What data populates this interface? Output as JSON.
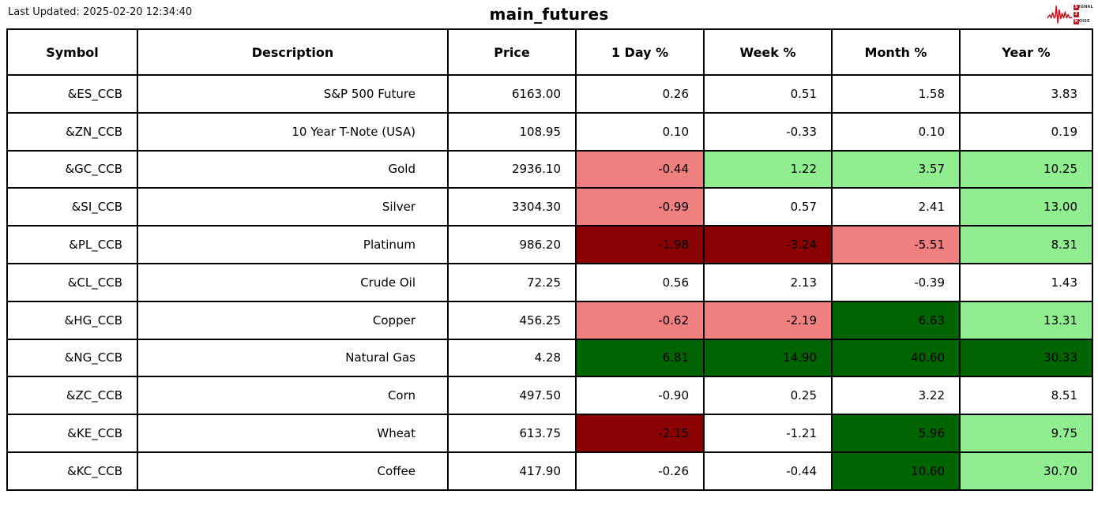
{
  "header": {
    "last_updated": "Last Updated: 2025-02-20 12:34:40",
    "title": "main_futures",
    "logo": {
      "line1_boxed": "S",
      "line1_rest": "IGNAL",
      "line2_boxed": "2",
      "line2_rest": "",
      "line3_boxed": "N",
      "line3_rest": "OISE",
      "accent_color": "#c41220"
    }
  },
  "table": {
    "columns": [
      "Symbol",
      "Description",
      "Price",
      "1 Day %",
      "Week %",
      "Month %",
      "Year %"
    ],
    "color_map": {
      "white": "#FFFFFF",
      "light_red": "#F08080",
      "light_green": "#90EE90",
      "dark_red": "#8B0000",
      "dark_green": "#006400"
    },
    "rows": [
      {
        "symbol": "&ES_CCB",
        "description": "S&P 500 Future",
        "price": "6163.00",
        "values": [
          "0.26",
          "0.51",
          "1.58",
          "3.83"
        ],
        "colors": [
          "white",
          "white",
          "white",
          "white"
        ]
      },
      {
        "symbol": "&ZN_CCB",
        "description": "10 Year T-Note (USA)",
        "price": "108.95",
        "values": [
          "0.10",
          "-0.33",
          "0.10",
          "0.19"
        ],
        "colors": [
          "white",
          "white",
          "white",
          "white"
        ]
      },
      {
        "symbol": "&GC_CCB",
        "description": "Gold",
        "price": "2936.10",
        "values": [
          "-0.44",
          "1.22",
          "3.57",
          "10.25"
        ],
        "colors": [
          "light_red",
          "light_green",
          "light_green",
          "light_green"
        ]
      },
      {
        "symbol": "&SI_CCB",
        "description": "Silver",
        "price": "3304.30",
        "values": [
          "-0.99",
          "0.57",
          "2.41",
          "13.00"
        ],
        "colors": [
          "light_red",
          "white",
          "white",
          "light_green"
        ]
      },
      {
        "symbol": "&PL_CCB",
        "description": "Platinum",
        "price": "986.20",
        "values": [
          "-1.98",
          "-3.24",
          "-5.51",
          "8.31"
        ],
        "colors": [
          "dark_red",
          "dark_red",
          "light_red",
          "light_green"
        ]
      },
      {
        "symbol": "&CL_CCB",
        "description": "Crude Oil",
        "price": "72.25",
        "values": [
          "0.56",
          "2.13",
          "-0.39",
          "1.43"
        ],
        "colors": [
          "white",
          "white",
          "white",
          "white"
        ]
      },
      {
        "symbol": "&HG_CCB",
        "description": "Copper",
        "price": "456.25",
        "values": [
          "-0.62",
          "-2.19",
          "6.63",
          "13.31"
        ],
        "colors": [
          "light_red",
          "light_red",
          "dark_green",
          "light_green"
        ]
      },
      {
        "symbol": "&NG_CCB",
        "description": "Natural Gas",
        "price": "4.28",
        "values": [
          "6.81",
          "14.90",
          "40.60",
          "30.33"
        ],
        "colors": [
          "dark_green",
          "dark_green",
          "dark_green",
          "dark_green"
        ]
      },
      {
        "symbol": "&ZC_CCB",
        "description": "Corn",
        "price": "497.50",
        "values": [
          "-0.90",
          "0.25",
          "3.22",
          "8.51"
        ],
        "colors": [
          "white",
          "white",
          "white",
          "white"
        ]
      },
      {
        "symbol": "&KE_CCB",
        "description": "Wheat",
        "price": "613.75",
        "values": [
          "-2.15",
          "-1.21",
          "5.96",
          "9.75"
        ],
        "colors": [
          "dark_red",
          "white",
          "dark_green",
          "light_green"
        ]
      },
      {
        "symbol": "&KC_CCB",
        "description": "Coffee",
        "price": "417.90",
        "values": [
          "-0.26",
          "-0.44",
          "10.60",
          "30.70"
        ],
        "colors": [
          "white",
          "white",
          "dark_green",
          "light_green"
        ]
      }
    ]
  },
  "chart_data": {
    "type": "table",
    "title": "main_futures",
    "columns": [
      "Symbol",
      "Description",
      "Price",
      "1 Day %",
      "Week %",
      "Month %",
      "Year %"
    ],
    "rows": [
      [
        "&ES_CCB",
        "S&P 500 Future",
        6163.0,
        0.26,
        0.51,
        1.58,
        3.83
      ],
      [
        "&ZN_CCB",
        "10 Year T-Note (USA)",
        108.95,
        0.1,
        -0.33,
        0.1,
        0.19
      ],
      [
        "&GC_CCB",
        "Gold",
        2936.1,
        -0.44,
        1.22,
        3.57,
        10.25
      ],
      [
        "&SI_CCB",
        "Silver",
        3304.3,
        -0.99,
        0.57,
        2.41,
        13.0
      ],
      [
        "&PL_CCB",
        "Platinum",
        986.2,
        -1.98,
        -3.24,
        -5.51,
        8.31
      ],
      [
        "&CL_CCB",
        "Crude Oil",
        72.25,
        0.56,
        2.13,
        -0.39,
        1.43
      ],
      [
        "&HG_CCB",
        "Copper",
        456.25,
        -0.62,
        -2.19,
        6.63,
        13.31
      ],
      [
        "&NG_CCB",
        "Natural Gas",
        4.28,
        6.81,
        14.9,
        40.6,
        30.33
      ],
      [
        "&ZC_CCB",
        "Corn",
        497.5,
        -0.9,
        0.25,
        3.22,
        8.51
      ],
      [
        "&KE_CCB",
        "Wheat",
        613.75,
        -2.15,
        -1.21,
        5.96,
        9.75
      ],
      [
        "&KC_CCB",
        "Coffee",
        417.9,
        -0.26,
        -0.44,
        10.6,
        30.7
      ]
    ],
    "cell_color_coding": "percent cells shaded white / light_red (#F08080) / light_green (#90EE90) / dark_red (#8B0000) / dark_green (#006400) per table.rows[].colors"
  }
}
